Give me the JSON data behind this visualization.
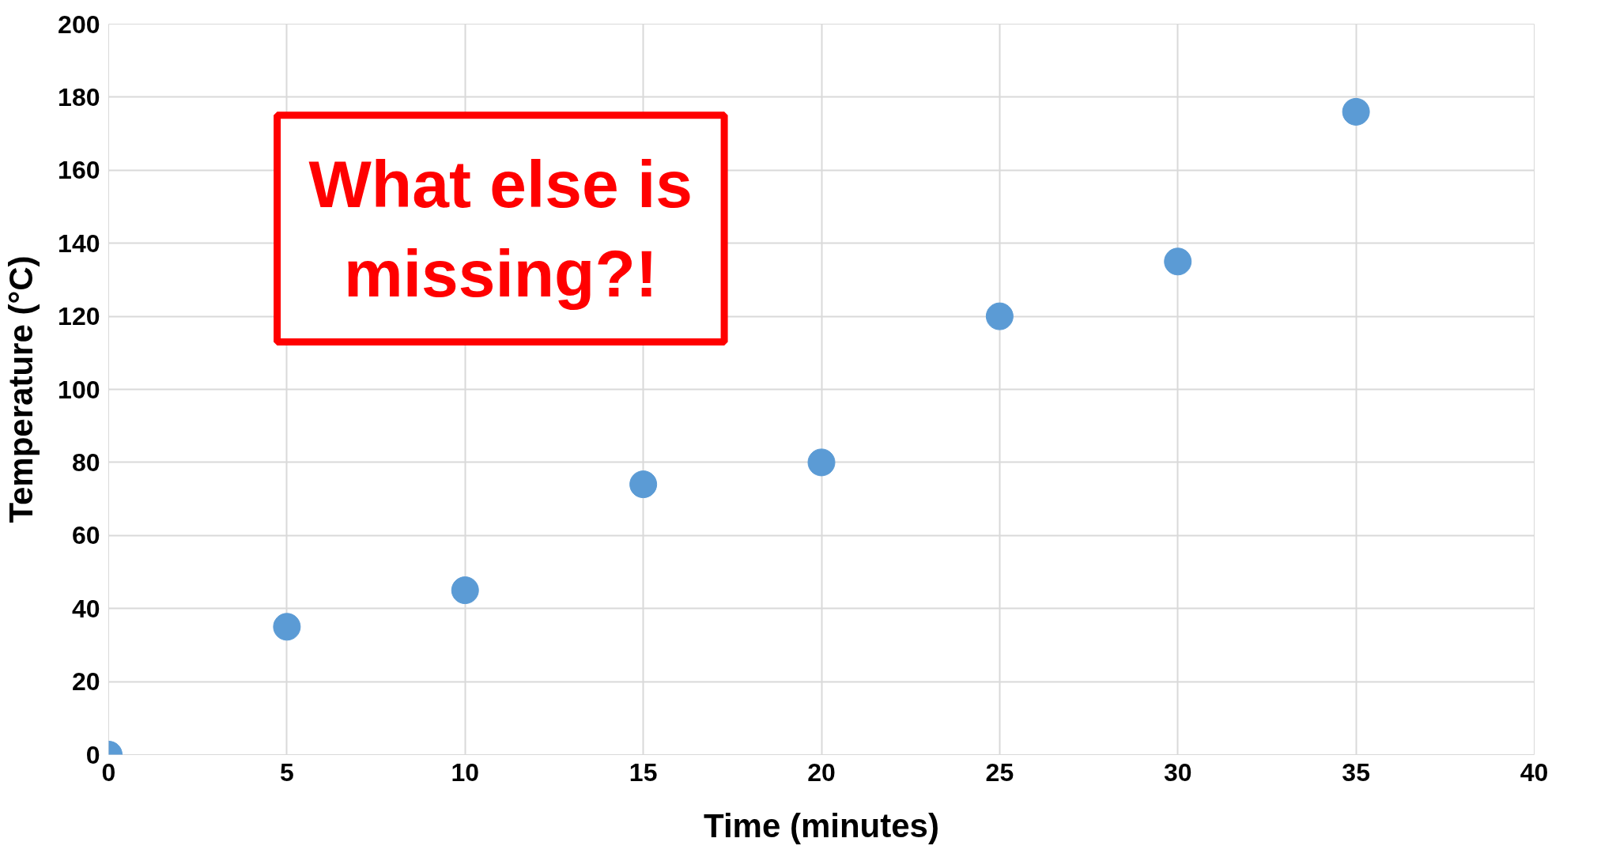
{
  "chart_data": {
    "type": "scatter",
    "xlabel": "Time (minutes)",
    "ylabel": "Temperature (°C)",
    "x": [
      0,
      5,
      10,
      15,
      20,
      25,
      30,
      35
    ],
    "series": [
      {
        "color": "#5b9bd5",
        "values": [
          0,
          35,
          45,
          74,
          80,
          120,
          135,
          176
        ]
      }
    ],
    "xlim": [
      0,
      40
    ],
    "xticks": [
      0,
      5,
      10,
      15,
      20,
      25,
      30,
      35,
      40
    ],
    "ylim": [
      0,
      200
    ],
    "yticks": [
      0,
      20,
      40,
      60,
      80,
      100,
      120,
      140,
      160,
      180,
      200
    ],
    "grid": true,
    "marker": "circle",
    "annotations": [
      "What else is missing?!"
    ]
  }
}
